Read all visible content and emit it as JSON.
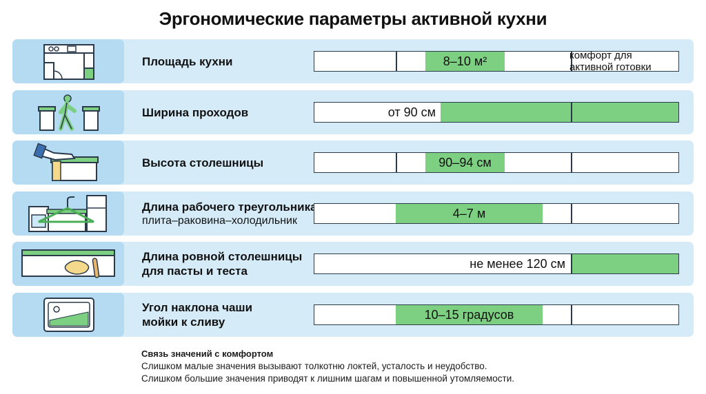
{
  "title": "Эргономические параметры активной кухни",
  "rows": [
    {
      "icon": "kitchen-plan-icon",
      "label": "Площадь кухни",
      "sublabel": "",
      "value": "8–10 м²",
      "note_lines": [
        "комфорт для",
        "активной готовки"
      ]
    },
    {
      "icon": "walking-person-icon",
      "label": "Ширина проходов",
      "sublabel": "",
      "value": "от 90 см"
    },
    {
      "icon": "hand-countertop-icon",
      "label": "Высота столешницы",
      "sublabel": "",
      "value": "90–94 см"
    },
    {
      "icon": "work-triangle-icon",
      "label": "Длина рабочего треугольника",
      "sublabel": "плита–раковина–холодильник",
      "value": "4–7 м"
    },
    {
      "icon": "dough-countertop-icon",
      "label_lines": [
        "Длина ровной столешницы",
        "для пасты и теста"
      ],
      "value": "не менее 120 см"
    },
    {
      "icon": "sink-slope-icon",
      "label_lines": [
        "Угол наклона чаши",
        "мойки к сливу"
      ],
      "value": "10–15 градусов"
    }
  ],
  "footer": {
    "heading": "Связь значений с комфортом",
    "lines": [
      "Слишком малые значения вызывают толкотню локтей, усталость и неудобство.",
      "Слишком большие значения приводят к лишним шагам и повышенной утомляемости."
    ]
  },
  "colors": {
    "row_bg": "#d6ebf8",
    "icon_bg": "#b5dbf3",
    "fill": "#7dcf82",
    "outline": "#2a3a4a"
  }
}
